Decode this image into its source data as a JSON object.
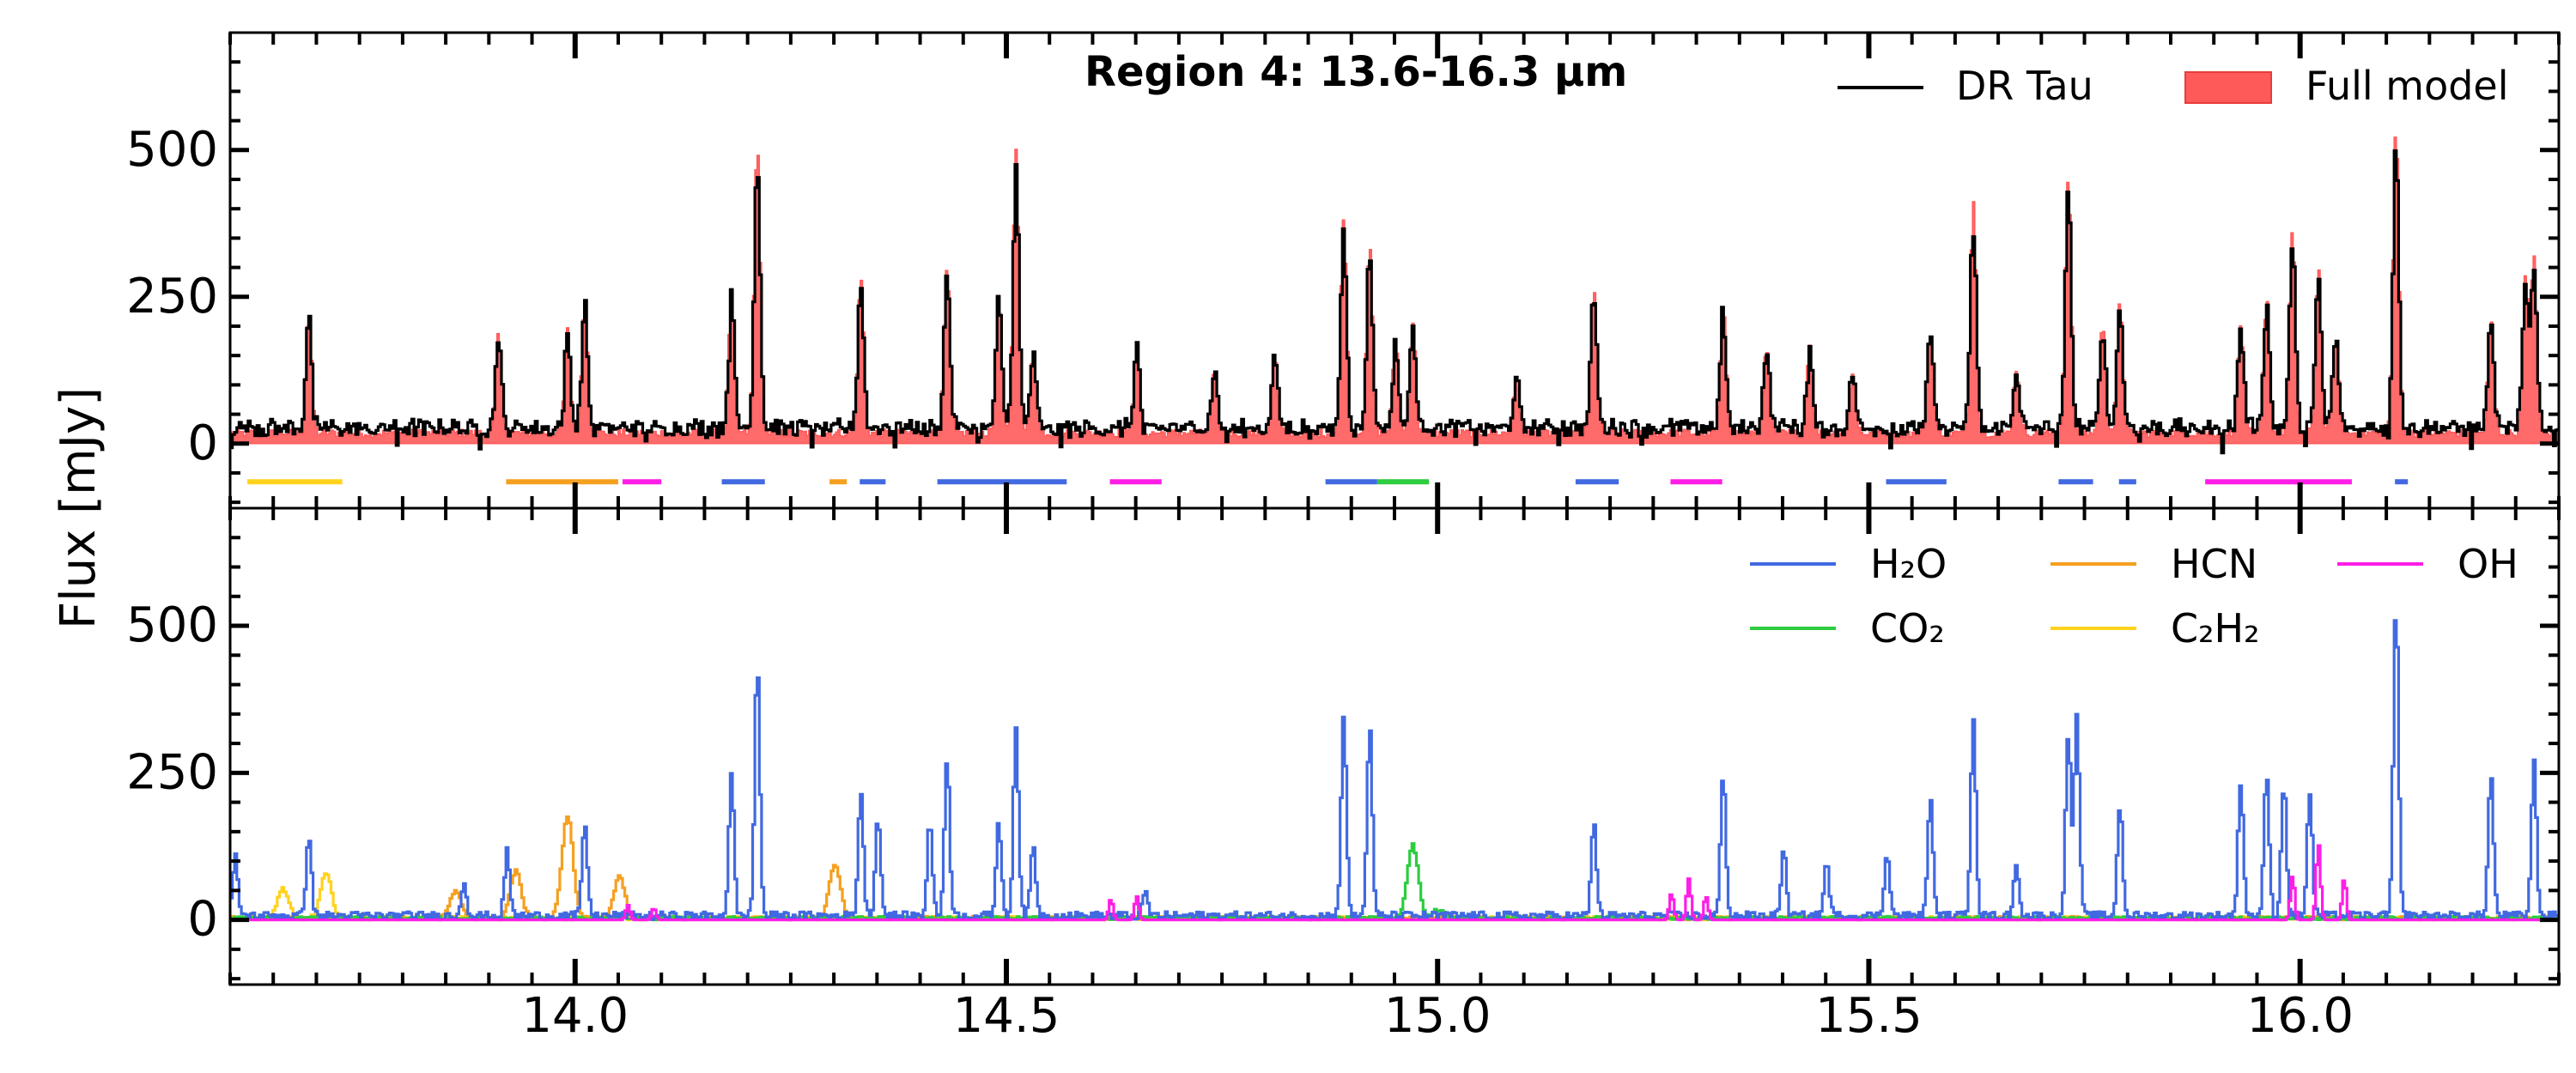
{
  "ylabel": "Flux [mJy]",
  "xticks": [
    "14.0",
    "14.5",
    "15.0",
    "15.5",
    "16.0"
  ],
  "yticks": [
    "500",
    "250",
    "0"
  ],
  "colors": {
    "observed": "#000000",
    "model": "#ff5a5a",
    "h2o": "#4169e1",
    "co2": "#2ecc40",
    "hcn": "#f5a020",
    "c2h2": "#ffd21e",
    "oh": "#ff1ee6"
  },
  "chart_data": [
    {
      "type": "line",
      "panel": "top",
      "title": "Region 4: 13.6-16.3 µm",
      "xlabel": "",
      "ylabel": "Flux [mJy]",
      "xlim": [
        13.6,
        16.3
      ],
      "ylim": [
        -110,
        700
      ],
      "yticks": [
        0,
        250,
        500
      ],
      "xticks": [
        14.0,
        14.5,
        15.0,
        15.5,
        16.0
      ],
      "legend_placement": "top-right",
      "series": [
        {
          "name": "DR Tau",
          "style": "step-line"
        },
        {
          "name": "Full model",
          "style": "filled"
        }
      ],
      "peaks": [
        [
          13.69,
          205
        ],
        [
          13.91,
          165
        ],
        [
          13.99,
          175
        ],
        [
          14.01,
          230
        ],
        [
          14.18,
          240
        ],
        [
          14.21,
          500
        ],
        [
          14.33,
          265
        ],
        [
          14.43,
          280
        ],
        [
          14.49,
          235
        ],
        [
          14.51,
          480
        ],
        [
          14.53,
          140
        ],
        [
          14.65,
          150
        ],
        [
          14.74,
          100
        ],
        [
          14.81,
          130
        ],
        [
          14.89,
          365
        ],
        [
          14.92,
          320
        ],
        [
          14.95,
          160
        ],
        [
          14.97,
          190
        ],
        [
          15.09,
          90
        ],
        [
          15.18,
          250
        ],
        [
          15.33,
          215
        ],
        [
          15.38,
          150
        ],
        [
          15.43,
          150
        ],
        [
          15.48,
          105
        ],
        [
          15.57,
          175
        ],
        [
          15.62,
          400
        ],
        [
          15.67,
          110
        ],
        [
          15.73,
          440
        ],
        [
          15.77,
          185
        ],
        [
          15.79,
          220
        ],
        [
          15.93,
          185
        ],
        [
          15.96,
          230
        ],
        [
          15.99,
          340
        ],
        [
          16.02,
          280
        ],
        [
          16.04,
          165
        ],
        [
          16.11,
          520
        ],
        [
          16.22,
          190
        ],
        [
          16.26,
          260
        ],
        [
          16.27,
          300
        ]
      ],
      "range_markers": [
        {
          "species": "C2H2",
          "from": 13.62,
          "to": 13.73
        },
        {
          "species": "HCN",
          "from": 13.92,
          "to": 14.05
        },
        {
          "species": "OH",
          "from": 14.055,
          "to": 14.1
        },
        {
          "species": "H2O",
          "from": 14.17,
          "to": 14.22
        },
        {
          "species": "HCN",
          "from": 14.295,
          "to": 14.315
        },
        {
          "species": "H2O",
          "from": 14.33,
          "to": 14.36
        },
        {
          "species": "H2O",
          "from": 14.42,
          "to": 14.57
        },
        {
          "species": "OH",
          "from": 14.62,
          "to": 14.68
        },
        {
          "species": "H2O",
          "from": 14.87,
          "to": 14.93
        },
        {
          "species": "CO2",
          "from": 14.93,
          "to": 14.99
        },
        {
          "species": "H2O",
          "from": 15.16,
          "to": 15.21
        },
        {
          "species": "OH",
          "from": 15.27,
          "to": 15.33
        },
        {
          "species": "H2O",
          "from": 15.52,
          "to": 15.59
        },
        {
          "species": "H2O",
          "from": 15.72,
          "to": 15.76
        },
        {
          "species": "H2O",
          "from": 15.79,
          "to": 15.81
        },
        {
          "species": "OH",
          "from": 15.89,
          "to": 16.06
        },
        {
          "species": "H2O",
          "from": 16.11,
          "to": 16.125
        }
      ]
    },
    {
      "type": "line",
      "panel": "bottom",
      "xlabel": "",
      "ylabel": "Flux [mJy]",
      "xlim": [
        13.6,
        16.3
      ],
      "ylim": [
        -110,
        700
      ],
      "yticks": [
        0,
        250,
        500
      ],
      "xticks": [
        14.0,
        14.5,
        15.0,
        15.5,
        16.0
      ],
      "legend_placement": "top-right",
      "series": [
        {
          "name": "H₂O",
          "key": "h2o",
          "style": "step-line",
          "peaks": [
            [
              13.605,
              100
            ],
            [
              13.69,
              140
            ],
            [
              13.87,
              60
            ],
            [
              13.92,
              110
            ],
            [
              14.01,
              160
            ],
            [
              14.18,
              240
            ],
            [
              14.21,
              430
            ],
            [
              14.33,
              210
            ],
            [
              14.35,
              170
            ],
            [
              14.41,
              160
            ],
            [
              14.43,
              270
            ],
            [
              14.49,
              160
            ],
            [
              14.51,
              320
            ],
            [
              14.53,
              120
            ],
            [
              14.66,
              40
            ],
            [
              14.89,
              340
            ],
            [
              14.92,
              320
            ],
            [
              15.18,
              160
            ],
            [
              15.33,
              240
            ],
            [
              15.4,
              110
            ],
            [
              15.45,
              90
            ],
            [
              15.52,
              110
            ],
            [
              15.57,
              200
            ],
            [
              15.62,
              340
            ],
            [
              15.67,
              90
            ],
            [
              15.73,
              310
            ],
            [
              15.74,
              340
            ],
            [
              15.79,
              190
            ],
            [
              15.93,
              230
            ],
            [
              15.96,
              240
            ],
            [
              15.98,
              225
            ],
            [
              16.01,
              210
            ],
            [
              16.11,
              525
            ],
            [
              16.22,
              240
            ],
            [
              16.27,
              260
            ]
          ]
        },
        {
          "name": "CO₂",
          "key": "co2",
          "style": "step-line",
          "peaks": [
            [
              14.97,
              125
            ],
            [
              15.0,
              15
            ]
          ]
        },
        {
          "name": "HCN",
          "key": "hcn",
          "style": "step-line",
          "peaks": [
            [
              13.86,
              45
            ],
            [
              13.93,
              80
            ],
            [
              13.99,
              175
            ],
            [
              14.05,
              70
            ],
            [
              14.3,
              90
            ]
          ]
        },
        {
          "name": "C₂H₂",
          "key": "c2h2",
          "style": "step-line",
          "peaks": [
            [
              13.66,
              50
            ],
            [
              13.71,
              75
            ]
          ]
        },
        {
          "name": "OH",
          "key": "oh",
          "style": "step-line",
          "peaks": [
            [
              14.06,
              25
            ],
            [
              14.09,
              20
            ],
            [
              14.62,
              35
            ],
            [
              14.65,
              40
            ],
            [
              15.27,
              45
            ],
            [
              15.29,
              70
            ],
            [
              15.31,
              40
            ],
            [
              15.99,
              75
            ],
            [
              16.02,
              130
            ],
            [
              16.05,
              70
            ]
          ]
        }
      ]
    }
  ]
}
